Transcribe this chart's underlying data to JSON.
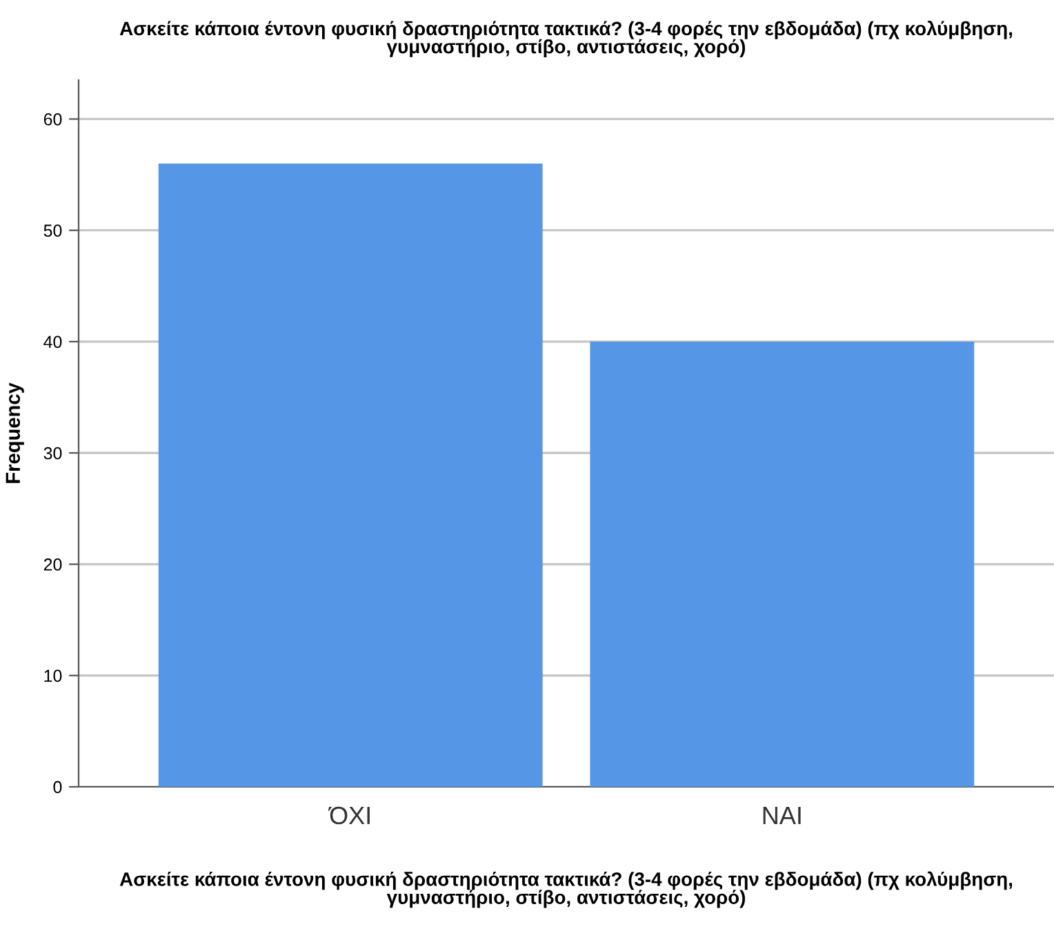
{
  "chart_data": {
    "type": "bar",
    "title": "Ασκείτε κάποια έντονη φυσική δραστηριότητα τακτικά? (3-4 φορές την εβδομάδα) (πχ κολύμβηση,\nγυμναστήριο, στίβο, αντιστάσεις, χορό)",
    "xlabel": "Ασκείτε κάποια έντονη φυσική δραστηριότητα τακτικά? (3-4 φορές την εβδομάδα) (πχ κολύμβηση,\nγυμναστήριο, στίβο, αντιστάσεις, χορό)",
    "ylabel": "Frequency",
    "categories": [
      "ΌΧΙ",
      "ΝΑΙ"
    ],
    "values": [
      56,
      40
    ],
    "color": "#5596e6",
    "ylim": [
      0,
      63.5
    ],
    "yticks": [
      0,
      10,
      20,
      30,
      40,
      50,
      60
    ],
    "grid": "y"
  }
}
